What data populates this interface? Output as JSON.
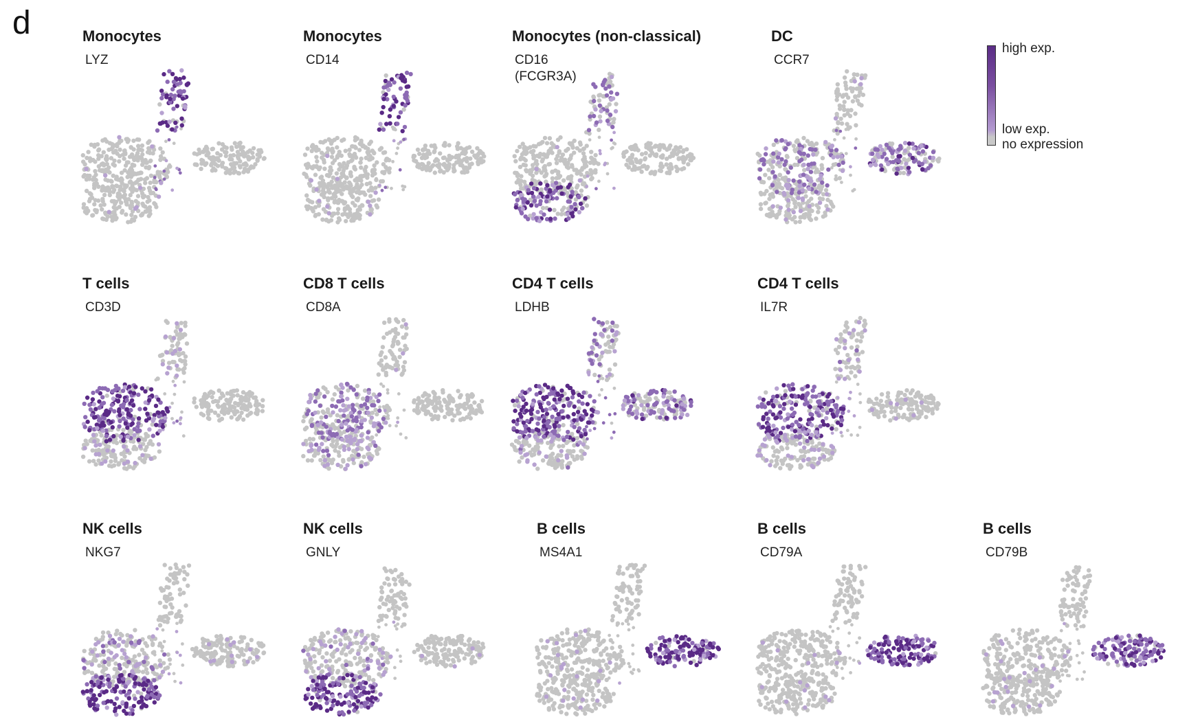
{
  "figure_label": "d",
  "legend": {
    "high": "high exp.",
    "low": "low exp.",
    "none": "no expression"
  },
  "colors": {
    "none": "#c4c4c4",
    "low": "#b7a2d1",
    "mid": "#8d6bb4",
    "high": "#5a2a86"
  },
  "panels": [
    {
      "cell_type": "Monocytes",
      "gene": "LYZ",
      "regions": {
        "mono": 0.85,
        "bridge": 0.5,
        "t": 0.02,
        "nk": 0.02,
        "b": 0.0
      }
    },
    {
      "cell_type": "Monocytes",
      "gene": "CD14",
      "regions": {
        "mono": 0.9,
        "bridge": 0.35,
        "t": 0.02,
        "nk": 0.02,
        "b": 0.0
      }
    },
    {
      "cell_type": "Monocytes (non-classical)",
      "gene": "CD16\n(FCGR3A)",
      "regions": {
        "mono": 0.45,
        "bridge": 0.3,
        "t": 0.02,
        "nk": 0.75,
        "b": 0.0
      }
    },
    {
      "cell_type": "DC",
      "gene": "CCR7",
      "regions": {
        "mono": 0.05,
        "bridge": 0.4,
        "t": 0.45,
        "nk": 0.1,
        "b": 0.6
      }
    },
    {
      "cell_type": "T cells",
      "gene": "CD3D",
      "regions": {
        "mono": 0.2,
        "bridge": 0.3,
        "t": 0.9,
        "nk": 0.15,
        "b": 0.0
      }
    },
    {
      "cell_type": "CD8 T cells",
      "gene": "CD8A",
      "regions": {
        "mono": 0.05,
        "bridge": 0.1,
        "t": 0.45,
        "nk": 0.3,
        "b": 0.0
      }
    },
    {
      "cell_type": "CD4 T cells",
      "gene": "LDHB",
      "regions": {
        "mono": 0.35,
        "bridge": 0.4,
        "t": 0.85,
        "nk": 0.25,
        "b": 0.55
      }
    },
    {
      "cell_type": "CD4 T cells",
      "gene": "IL7R",
      "regions": {
        "mono": 0.3,
        "bridge": 0.3,
        "t": 0.8,
        "nk": 0.2,
        "b": 0.05
      }
    },
    {
      "cell_type": "NK cells",
      "gene": "NKG7",
      "regions": {
        "mono": 0.05,
        "bridge": 0.2,
        "t": 0.3,
        "nk": 0.95,
        "b": 0.05
      }
    },
    {
      "cell_type": "NK cells",
      "gene": "GNLY",
      "regions": {
        "mono": 0.02,
        "bridge": 0.15,
        "t": 0.25,
        "nk": 0.95,
        "b": 0.02
      }
    },
    {
      "cell_type": "B cells",
      "gene": "MS4A1",
      "regions": {
        "mono": 0.0,
        "bridge": 0.05,
        "t": 0.04,
        "nk": 0.04,
        "b": 0.9
      }
    },
    {
      "cell_type": "B cells",
      "gene": "CD79A",
      "regions": {
        "mono": 0.0,
        "bridge": 0.05,
        "t": 0.03,
        "nk": 0.03,
        "b": 0.95
      }
    },
    {
      "cell_type": "B cells",
      "gene": "CD79B",
      "regions": {
        "mono": 0.0,
        "bridge": 0.05,
        "t": 0.05,
        "nk": 0.05,
        "b": 0.85
      }
    }
  ]
}
